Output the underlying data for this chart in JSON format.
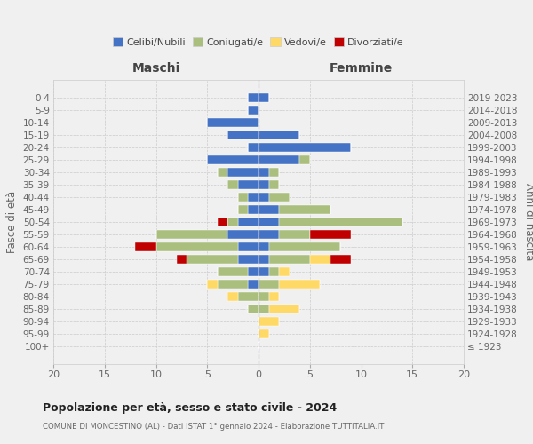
{
  "age_groups": [
    "100+",
    "95-99",
    "90-94",
    "85-89",
    "80-84",
    "75-79",
    "70-74",
    "65-69",
    "60-64",
    "55-59",
    "50-54",
    "45-49",
    "40-44",
    "35-39",
    "30-34",
    "25-29",
    "20-24",
    "15-19",
    "10-14",
    "5-9",
    "0-4"
  ],
  "birth_years": [
    "≤ 1923",
    "1924-1928",
    "1929-1933",
    "1934-1938",
    "1939-1943",
    "1944-1948",
    "1949-1953",
    "1954-1958",
    "1959-1963",
    "1964-1968",
    "1969-1973",
    "1974-1978",
    "1979-1983",
    "1984-1988",
    "1989-1993",
    "1994-1998",
    "1999-2003",
    "2004-2008",
    "2009-2013",
    "2014-2018",
    "2019-2023"
  ],
  "colors": {
    "celibi": "#4472C4",
    "coniugati": "#AABF7E",
    "vedovi": "#FFD966",
    "divorziati": "#C00000"
  },
  "males": {
    "celibi": [
      0,
      0,
      0,
      0,
      0,
      1,
      1,
      2,
      2,
      3,
      2,
      1,
      1,
      2,
      3,
      5,
      1,
      3,
      5,
      1,
      1
    ],
    "coniugati": [
      0,
      0,
      0,
      1,
      2,
      3,
      3,
      5,
      8,
      7,
      1,
      1,
      1,
      1,
      1,
      0,
      0,
      0,
      0,
      0,
      0
    ],
    "vedovi": [
      0,
      0,
      0,
      0,
      1,
      1,
      0,
      0,
      0,
      0,
      0,
      0,
      0,
      0,
      0,
      0,
      0,
      0,
      0,
      0,
      0
    ],
    "divorziati": [
      0,
      0,
      0,
      0,
      0,
      0,
      0,
      1,
      2,
      0,
      1,
      0,
      0,
      0,
      0,
      0,
      0,
      0,
      0,
      0,
      0
    ]
  },
  "females": {
    "celibi": [
      0,
      0,
      0,
      0,
      0,
      0,
      1,
      1,
      1,
      2,
      2,
      2,
      1,
      1,
      1,
      4,
      9,
      4,
      0,
      0,
      1
    ],
    "coniugati": [
      0,
      0,
      0,
      1,
      1,
      2,
      1,
      4,
      7,
      3,
      12,
      5,
      2,
      1,
      1,
      1,
      0,
      0,
      0,
      0,
      0
    ],
    "vedovi": [
      0,
      1,
      2,
      3,
      1,
      4,
      1,
      2,
      0,
      0,
      0,
      0,
      0,
      0,
      0,
      0,
      0,
      0,
      0,
      0,
      0
    ],
    "divorziati": [
      0,
      0,
      0,
      0,
      0,
      0,
      0,
      2,
      0,
      4,
      0,
      0,
      0,
      0,
      0,
      0,
      0,
      0,
      0,
      0,
      0
    ]
  },
  "title": "Popolazione per età, sesso e stato civile - 2024",
  "subtitle": "COMUNE DI MONCESTINO (AL) - Dati ISTAT 1° gennaio 2024 - Elaborazione TUTTITALIA.IT",
  "ylabel_left": "Fasce di età",
  "ylabel_right": "Anni di nascita",
  "xlabel_maschi": "Maschi",
  "xlabel_femmine": "Femmine",
  "xlim": [
    -20,
    20
  ],
  "xticks": [
    -20,
    -15,
    -10,
    -5,
    0,
    5,
    10,
    15,
    20
  ],
  "xticklabels": [
    "20",
    "15",
    "10",
    "5",
    "0",
    "5",
    "10",
    "15",
    "20"
  ],
  "legend_labels": [
    "Celibi/Nubili",
    "Coniugati/e",
    "Vedovi/e",
    "Divorziati/e"
  ],
  "background_color": "#f0f0f0"
}
